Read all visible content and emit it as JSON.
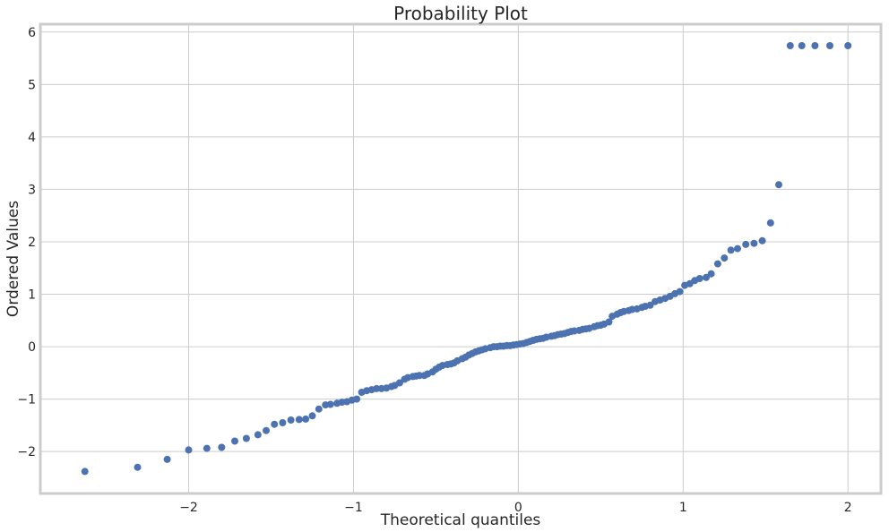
{
  "chart_data": {
    "type": "scatter",
    "title": "Probability Plot",
    "xlabel": "Theoretical quantiles",
    "ylabel": "Ordered Values",
    "xlim": [
      -2.9,
      2.2
    ],
    "ylim": [
      -2.8,
      6.15
    ],
    "xticks": [
      -2,
      -1,
      0,
      1,
      2
    ],
    "yticks": [
      -2,
      -1,
      0,
      1,
      2,
      3,
      4,
      5,
      6
    ],
    "grid": true,
    "marker_color": "#4c72b0",
    "series": [
      {
        "x": [
          -2.63,
          -2.31,
          -2.13,
          -2.0,
          -1.89,
          -1.8,
          -1.72,
          -1.65,
          -1.58,
          -1.53,
          -1.48,
          -1.43,
          -1.38,
          -1.33,
          -1.29,
          -1.25,
          -1.21,
          -1.17,
          -1.14,
          -1.1,
          -1.07,
          -1.04,
          -1.01,
          -0.98,
          -0.95,
          -0.92,
          -0.89,
          -0.86,
          -0.83,
          -0.8,
          -0.77,
          -0.75,
          -0.72,
          -0.69,
          -0.67,
          -0.64,
          -0.62,
          -0.6,
          -0.57,
          -0.55,
          -0.52,
          -0.5,
          -0.48,
          -0.46,
          -0.43,
          -0.41,
          -0.39,
          -0.37,
          -0.34,
          -0.32,
          -0.3,
          -0.28,
          -0.26,
          -0.24,
          -0.22,
          -0.2,
          -0.17,
          -0.15,
          -0.13,
          -0.11,
          -0.09,
          -0.07,
          -0.05,
          -0.03,
          -0.01,
          0.01,
          0.03,
          0.05,
          0.07,
          0.09,
          0.11,
          0.13,
          0.15,
          0.17,
          0.2,
          0.22,
          0.24,
          0.26,
          0.28,
          0.3,
          0.32,
          0.34,
          0.37,
          0.39,
          0.41,
          0.43,
          0.46,
          0.48,
          0.5,
          0.52,
          0.55,
          0.57,
          0.6,
          0.62,
          0.64,
          0.67,
          0.69,
          0.72,
          0.75,
          0.77,
          0.8,
          0.83,
          0.86,
          0.89,
          0.92,
          0.95,
          0.98,
          1.01,
          1.04,
          1.07,
          1.1,
          1.14,
          1.17,
          1.21,
          1.25,
          1.29,
          1.33,
          1.38,
          1.43,
          1.48,
          1.53,
          1.58,
          1.65,
          1.72,
          1.8,
          1.89,
          2.0
        ],
        "y": [
          -2.38,
          -2.3,
          -2.15,
          -1.97,
          -1.94,
          -1.92,
          -1.8,
          -1.75,
          -1.68,
          -1.6,
          -1.48,
          -1.45,
          -1.4,
          -1.39,
          -1.38,
          -1.32,
          -1.19,
          -1.11,
          -1.1,
          -1.08,
          -1.06,
          -1.05,
          -1.02,
          -1.0,
          -0.87,
          -0.84,
          -0.82,
          -0.8,
          -0.8,
          -0.79,
          -0.76,
          -0.74,
          -0.69,
          -0.62,
          -0.59,
          -0.57,
          -0.56,
          -0.55,
          -0.55,
          -0.52,
          -0.48,
          -0.43,
          -0.39,
          -0.36,
          -0.34,
          -0.33,
          -0.31,
          -0.27,
          -0.23,
          -0.2,
          -0.16,
          -0.13,
          -0.1,
          -0.08,
          -0.06,
          -0.04,
          -0.02,
          0.0,
          0.0,
          0.01,
          0.01,
          0.02,
          0.02,
          0.03,
          0.04,
          0.05,
          0.06,
          0.08,
          0.1,
          0.12,
          0.14,
          0.15,
          0.16,
          0.18,
          0.2,
          0.21,
          0.23,
          0.24,
          0.25,
          0.27,
          0.29,
          0.3,
          0.31,
          0.33,
          0.34,
          0.35,
          0.38,
          0.4,
          0.41,
          0.43,
          0.47,
          0.58,
          0.62,
          0.65,
          0.67,
          0.69,
          0.71,
          0.72,
          0.75,
          0.77,
          0.79,
          0.86,
          0.89,
          0.92,
          0.96,
          1.01,
          1.05,
          1.17,
          1.2,
          1.26,
          1.3,
          1.32,
          1.39,
          1.58,
          1.69,
          1.84,
          1.87,
          1.95,
          1.97,
          2.02,
          2.36,
          3.09,
          5.74,
          5.74,
          5.74,
          5.74,
          5.74
        ]
      }
    ]
  }
}
